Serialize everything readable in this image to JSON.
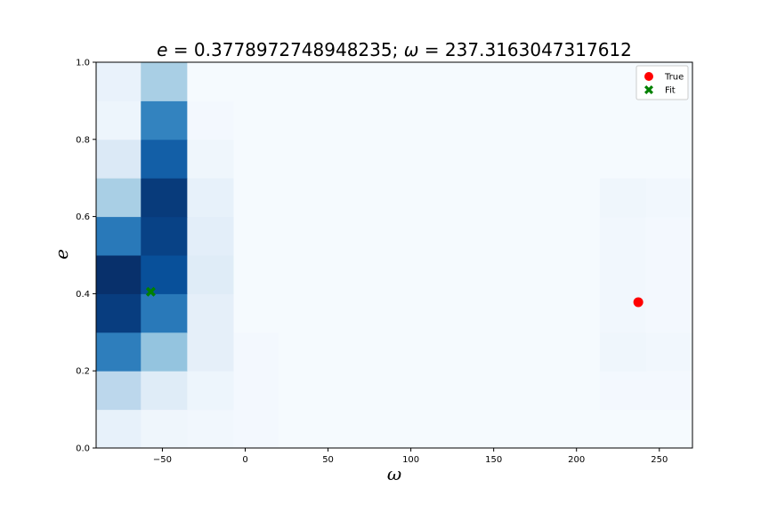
{
  "chart_data": {
    "type": "heatmap",
    "title_parts": {
      "e_symbol": "e",
      "e_value": " = 0.3778972748948235; ",
      "omega_symbol": "ω",
      "omega_value": " = 237.3163047317612"
    },
    "xlabel": "ω",
    "ylabel": "e",
    "xlim": [
      -90,
      270
    ],
    "ylim": [
      0,
      1
    ],
    "xticks": [
      -50,
      0,
      50,
      100,
      150,
      200,
      250
    ],
    "xtick_labels": [
      "−50",
      "0",
      "50",
      "100",
      "150",
      "200",
      "250"
    ],
    "yticks": [
      0.0,
      0.2,
      0.4,
      0.6,
      0.8,
      1.0
    ],
    "ytick_labels": [
      "0.0",
      "0.2",
      "0.4",
      "0.6",
      "0.8",
      "1.0"
    ],
    "x_bin_edges": [
      -90,
      -63,
      -35,
      -7,
      20,
      48,
      76,
      103,
      131,
      159,
      186,
      214,
      242,
      270
    ],
    "y_bin_edges": [
      0,
      0.1,
      0.2,
      0.3,
      0.4,
      0.5,
      0.6,
      0.7,
      0.8,
      0.9,
      1.0
    ],
    "colormap": "Blues",
    "z": [
      [
        0.08,
        0.04,
        0.03,
        0.02,
        0.01,
        0.01,
        0.01,
        0.01,
        0.01,
        0.01,
        0.01,
        0.01,
        0.01
      ],
      [
        0.28,
        0.12,
        0.05,
        0.02,
        0.01,
        0.01,
        0.01,
        0.01,
        0.01,
        0.01,
        0.01,
        0.02,
        0.02
      ],
      [
        0.7,
        0.4,
        0.09,
        0.02,
        0.01,
        0.01,
        0.01,
        0.01,
        0.01,
        0.01,
        0.01,
        0.04,
        0.03
      ],
      [
        0.95,
        0.72,
        0.09,
        0.01,
        0.01,
        0.01,
        0.01,
        0.01,
        0.01,
        0.01,
        0.01,
        0.03,
        0.02
      ],
      [
        1.0,
        0.88,
        0.12,
        0.01,
        0.01,
        0.01,
        0.01,
        0.01,
        0.01,
        0.01,
        0.01,
        0.03,
        0.02
      ],
      [
        0.72,
        0.93,
        0.1,
        0.01,
        0.01,
        0.01,
        0.01,
        0.01,
        0.01,
        0.01,
        0.01,
        0.03,
        0.02
      ],
      [
        0.34,
        0.96,
        0.08,
        0.01,
        0.01,
        0.01,
        0.01,
        0.01,
        0.01,
        0.01,
        0.01,
        0.04,
        0.03
      ],
      [
        0.14,
        0.82,
        0.04,
        0.01,
        0.01,
        0.01,
        0.01,
        0.01,
        0.01,
        0.01,
        0.01,
        0.01,
        0.01
      ],
      [
        0.05,
        0.68,
        0.02,
        0.01,
        0.01,
        0.01,
        0.01,
        0.01,
        0.01,
        0.01,
        0.01,
        0.01,
        0.01
      ],
      [
        0.07,
        0.34,
        0.01,
        0.01,
        0.01,
        0.01,
        0.01,
        0.01,
        0.01,
        0.01,
        0.01,
        0.01,
        0.01
      ]
    ],
    "points": [
      {
        "name": "True",
        "x": 237.3,
        "y": 0.378,
        "color": "#ff0000",
        "marker": "circle"
      },
      {
        "name": "Fit",
        "x": -57,
        "y": 0.405,
        "color": "#008000",
        "marker": "x"
      }
    ],
    "legend": {
      "position": "top-right",
      "entries": [
        "True",
        "Fit"
      ]
    },
    "grid": false
  }
}
